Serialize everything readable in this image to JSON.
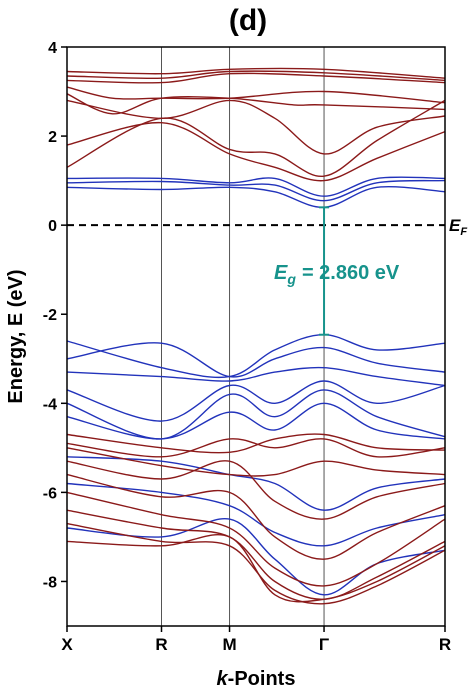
{
  "chart_data": {
    "type": "line",
    "panel_label": "(d)",
    "xlabel_bold_prefix": "k",
    "xlabel_suffix": "-Points",
    "ylabel": "Energy, E (eV)",
    "ylim": [
      -9,
      4
    ],
    "yticks": [
      4,
      2,
      0,
      -2,
      -4,
      -6,
      -8
    ],
    "ytick_labels": [
      "4",
      "2",
      "0",
      "-2",
      "-4",
      "-6",
      "-8"
    ],
    "xticks": [
      {
        "label": "X",
        "x": 0.0
      },
      {
        "label": "R",
        "x": 0.25
      },
      {
        "label": "M",
        "x": 0.43
      },
      {
        "label": "Γ",
        "x": 0.68
      },
      {
        "label": "R",
        "x": 1.0
      }
    ],
    "fermi_level": {
      "label": "E",
      "subscript": "F",
      "energy": 0
    },
    "band_gap": {
      "symbol": "E",
      "subscript": "g",
      "value_text": "= 2.860 eV",
      "k": 0.68,
      "from": -2.46,
      "to": 0.4
    },
    "colors": {
      "conduction": "#8b1a1a",
      "valence_blue": "#2233bb",
      "gap": "#17938c",
      "axis": "#000000",
      "kline": "#555555"
    },
    "series": [
      {
        "color": "conduction",
        "k": [
          0,
          0.25,
          0.43,
          0.68,
          1.0
        ],
        "e": [
          3.45,
          3.4,
          3.5,
          3.5,
          3.3
        ]
      },
      {
        "color": "conduction",
        "k": [
          0,
          0.25,
          0.43,
          0.68,
          1.0
        ],
        "e": [
          3.35,
          3.3,
          3.45,
          3.42,
          3.25
        ]
      },
      {
        "color": "conduction",
        "k": [
          0,
          0.25,
          0.43,
          0.68,
          1.0
        ],
        "e": [
          3.25,
          3.2,
          3.4,
          3.35,
          3.2
        ]
      },
      {
        "color": "conduction",
        "k": [
          0,
          0.12,
          0.25,
          0.43,
          0.68,
          1.0
        ],
        "e": [
          3.1,
          2.85,
          2.85,
          2.85,
          3.0,
          2.75
        ]
      },
      {
        "color": "conduction",
        "k": [
          0,
          0.12,
          0.25,
          0.43,
          0.6,
          0.68,
          1.0
        ],
        "e": [
          2.95,
          2.5,
          2.85,
          2.85,
          2.7,
          2.7,
          2.6
        ]
      },
      {
        "color": "conduction",
        "k": [
          0,
          0.25,
          0.43,
          0.55,
          0.68,
          0.82,
          1.0
        ],
        "e": [
          2.8,
          2.4,
          2.8,
          2.4,
          1.6,
          2.2,
          2.45
        ]
      },
      {
        "color": "conduction",
        "k": [
          0,
          0.25,
          0.43,
          0.55,
          0.68,
          0.82,
          1.0
        ],
        "e": [
          1.3,
          2.4,
          1.7,
          1.6,
          1.1,
          1.9,
          2.8
        ]
      },
      {
        "color": "conduction",
        "k": [
          0,
          0.25,
          0.43,
          0.55,
          0.68,
          0.82,
          1.0
        ],
        "e": [
          1.8,
          2.3,
          1.6,
          1.3,
          1.0,
          1.5,
          2.1
        ]
      },
      {
        "color": "valence_blue",
        "k": [
          0,
          0.25,
          0.43,
          0.55,
          0.68,
          0.82,
          1.0
        ],
        "e": [
          1.05,
          1.05,
          0.95,
          1.05,
          0.65,
          1.05,
          1.05
        ]
      },
      {
        "color": "valence_blue",
        "k": [
          0,
          0.25,
          0.43,
          0.55,
          0.68,
          0.82,
          1.0
        ],
        "e": [
          0.95,
          0.98,
          0.9,
          0.9,
          0.55,
          0.95,
          1.0
        ]
      },
      {
        "color": "valence_blue",
        "k": [
          0,
          0.25,
          0.43,
          0.55,
          0.68,
          0.82,
          1.0
        ],
        "e": [
          0.85,
          0.8,
          0.85,
          0.75,
          0.4,
          0.85,
          0.75
        ]
      },
      {
        "color": "valence_blue",
        "k": [
          0,
          0.25,
          0.43,
          0.55,
          0.68,
          0.82,
          1.0
        ],
        "e": [
          -2.6,
          -3.2,
          -3.4,
          -2.8,
          -2.46,
          -2.8,
          -2.65
        ]
      },
      {
        "color": "valence_blue",
        "k": [
          0,
          0.25,
          0.43,
          0.55,
          0.68,
          0.82,
          1.0
        ],
        "e": [
          -3.0,
          -2.65,
          -3.4,
          -3.0,
          -2.75,
          -3.1,
          -3.3
        ]
      },
      {
        "color": "valence_blue",
        "k": [
          0,
          0.25,
          0.43,
          0.55,
          0.68,
          0.82,
          1.0
        ],
        "e": [
          -3.3,
          -3.4,
          -3.5,
          -3.3,
          -3.2,
          -3.4,
          -3.6
        ]
      },
      {
        "color": "valence_blue",
        "k": [
          0,
          0.25,
          0.43,
          0.55,
          0.68,
          0.82,
          1.0
        ],
        "e": [
          -3.7,
          -4.4,
          -3.6,
          -4.0,
          -3.5,
          -4.0,
          -3.6
        ]
      },
      {
        "color": "valence_blue",
        "k": [
          0,
          0.25,
          0.43,
          0.55,
          0.68,
          0.82,
          1.0
        ],
        "e": [
          -4.0,
          -4.8,
          -3.8,
          -4.3,
          -3.7,
          -4.3,
          -4.75
        ]
      },
      {
        "color": "valence_blue",
        "k": [
          0,
          0.25,
          0.43,
          0.55,
          0.68,
          0.82,
          1.0
        ],
        "e": [
          -4.3,
          -4.8,
          -4.2,
          -4.6,
          -4.0,
          -4.6,
          -4.8
        ]
      },
      {
        "color": "valence_blue",
        "k": [
          0,
          0.25,
          0.43,
          0.55,
          0.68,
          0.82,
          1.0
        ],
        "e": [
          -5.2,
          -5.3,
          -5.6,
          -5.8,
          -6.4,
          -5.9,
          -5.7
        ]
      },
      {
        "color": "valence_blue",
        "k": [
          0,
          0.25,
          0.43,
          0.55,
          0.68,
          0.82,
          1.0
        ],
        "e": [
          -5.8,
          -6.0,
          -6.3,
          -6.9,
          -7.2,
          -6.8,
          -6.5
        ]
      },
      {
        "color": "valence_blue",
        "k": [
          0,
          0.25,
          0.43,
          0.55,
          0.68,
          0.82,
          1.0
        ],
        "e": [
          -6.8,
          -7.0,
          -6.6,
          -7.5,
          -8.3,
          -7.6,
          -7.3
        ]
      },
      {
        "color": "conduction",
        "k": [
          0,
          0.25,
          0.43,
          0.55,
          0.68,
          0.82,
          1.0
        ],
        "e": [
          -4.7,
          -5.0,
          -5.1,
          -4.8,
          -4.7,
          -5.0,
          -5.05
        ]
      },
      {
        "color": "conduction",
        "k": [
          0,
          0.25,
          0.43,
          0.55,
          0.68,
          0.82,
          1.0
        ],
        "e": [
          -4.9,
          -5.2,
          -4.8,
          -5.0,
          -4.8,
          -5.2,
          -5.0
        ]
      },
      {
        "color": "conduction",
        "k": [
          0,
          0.25,
          0.43,
          0.55,
          0.68,
          0.82,
          1.0
        ],
        "e": [
          -5.0,
          -5.4,
          -5.6,
          -5.6,
          -5.3,
          -5.5,
          -5.6
        ]
      },
      {
        "color": "conduction",
        "k": [
          0,
          0.25,
          0.43,
          0.55,
          0.68,
          0.82,
          1.0
        ],
        "e": [
          -5.3,
          -5.7,
          -5.3,
          -6.2,
          -6.6,
          -6.1,
          -5.8
        ]
      },
      {
        "color": "conduction",
        "k": [
          0,
          0.25,
          0.43,
          0.55,
          0.68,
          0.82,
          1.0
        ],
        "e": [
          -5.6,
          -6.1,
          -6.0,
          -7.0,
          -7.5,
          -6.9,
          -6.3
        ]
      },
      {
        "color": "conduction",
        "k": [
          0,
          0.25,
          0.43,
          0.55,
          0.68,
          0.82,
          1.0
        ],
        "e": [
          -6.0,
          -6.5,
          -6.8,
          -7.7,
          -8.1,
          -7.6,
          -6.6
        ]
      },
      {
        "color": "conduction",
        "k": [
          0,
          0.25,
          0.43,
          0.55,
          0.68,
          0.82,
          1.0
        ],
        "e": [
          -6.4,
          -6.8,
          -7.0,
          -8.0,
          -8.4,
          -7.9,
          -7.1
        ]
      },
      {
        "color": "conduction",
        "k": [
          0,
          0.25,
          0.43,
          0.55,
          0.68,
          0.82,
          1.0
        ],
        "e": [
          -6.7,
          -7.1,
          -7.2,
          -8.2,
          -8.5,
          -8.1,
          -7.3
        ]
      },
      {
        "color": "conduction",
        "k": [
          0,
          0.25,
          0.43,
          0.55,
          0.68,
          0.82,
          1.0
        ],
        "e": [
          -7.1,
          -7.2,
          -7.0,
          -8.3,
          -8.4,
          -8.0,
          -7.2
        ]
      }
    ]
  }
}
